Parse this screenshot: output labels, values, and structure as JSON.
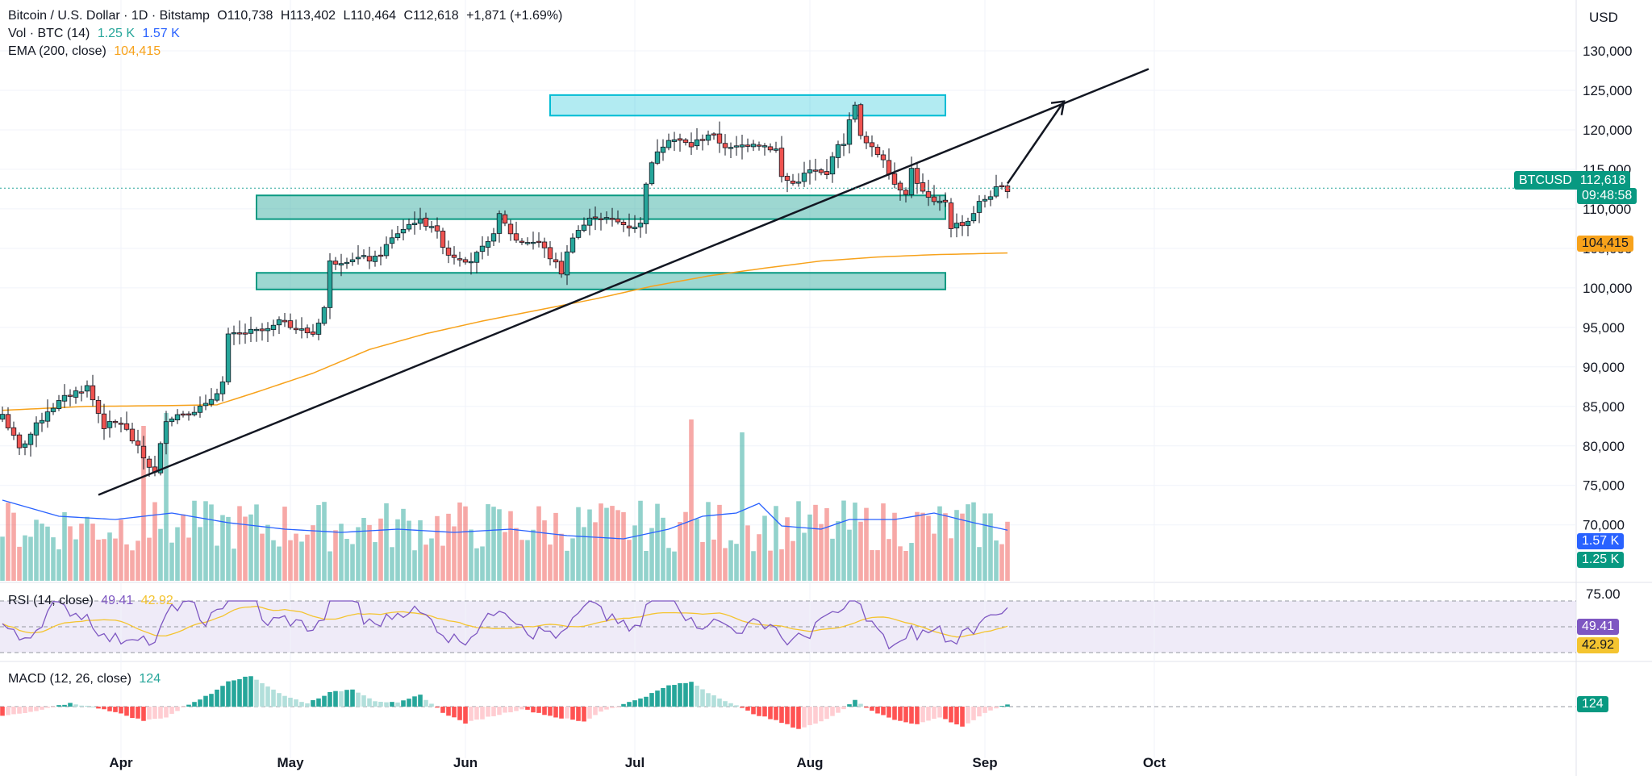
{
  "header": {
    "symbol_title": "Bitcoin / U.S. Dollar · 1D · Bitstamp",
    "open": "O110,738",
    "high": "H113,402",
    "low": "L110,464",
    "close": "C112,618",
    "change": "+1,871 (+1.69%)",
    "vol_label": "Vol · BTC (14)",
    "vol_value1": "1.25 K",
    "vol_value2": "1.57 K",
    "ema_label": "EMA (200, close)",
    "ema_value": "104,415",
    "rsi_label": "RSI (14, close)",
    "rsi_value1": "49.41",
    "rsi_value2": "42.92",
    "macd_label": "MACD (12, 26, close)",
    "macd_value": "124"
  },
  "badges": {
    "price_symbol": "BTCUSD",
    "price_value": "112,618",
    "countdown": "09:48:58",
    "ema": "104,415",
    "vol_ma": "1.57 K",
    "vol": "1.25 K",
    "rsi": "49.41",
    "rsi_ma": "42.92",
    "macd": "124",
    "rsi_top": "75.00",
    "currency": "USD"
  },
  "colors": {
    "up": "#26a69a",
    "down": "#ef5350",
    "ema": "#f7a21b",
    "zone": "#26a69a",
    "top_zone": "#00bcd4",
    "rsi": "#7e57c2",
    "rsi_ma": "#f4c430",
    "vol_ma": "#2962ff"
  },
  "chart_data": {
    "type": "candlestick",
    "price_axis": {
      "min": 70000,
      "max": 130000,
      "ticks": [
        "130,000",
        "125,000",
        "120,000",
        "115,000",
        "110,000",
        "105,000",
        "100,000",
        "95,000",
        "90,000",
        "85,000",
        "80,000",
        "75,000",
        "70,000"
      ]
    },
    "x_ticks": [
      "Apr",
      "May",
      "Jun",
      "Jul",
      "Aug",
      "Sep",
      "Oct"
    ],
    "x_tick_days": [
      21,
      51,
      82,
      112,
      143,
      174,
      204
    ],
    "last_day": 178,
    "price_anchors": [
      [
        0,
        84000
      ],
      [
        3,
        79500
      ],
      [
        8,
        84500
      ],
      [
        12,
        86500
      ],
      [
        15,
        87500
      ],
      [
        18,
        82500
      ],
      [
        21,
        83000
      ],
      [
        25,
        78500
      ],
      [
        27,
        76500
      ],
      [
        29,
        83500
      ],
      [
        32,
        84200
      ],
      [
        36,
        85000
      ],
      [
        39,
        88000
      ],
      [
        40,
        93800
      ],
      [
        43,
        94300
      ],
      [
        47,
        94600
      ],
      [
        50,
        96000
      ],
      [
        52,
        94800
      ],
      [
        55,
        94200
      ],
      [
        57,
        97500
      ],
      [
        58,
        103200
      ],
      [
        62,
        103800
      ],
      [
        66,
        103600
      ],
      [
        70,
        107000
      ],
      [
        73,
        108500
      ],
      [
        76,
        108000
      ],
      [
        79,
        104300
      ],
      [
        83,
        103500
      ],
      [
        86,
        105500
      ],
      [
        88,
        109000
      ],
      [
        91,
        106000
      ],
      [
        95,
        105800
      ],
      [
        99,
        102000
      ],
      [
        101,
        106700
      ],
      [
        105,
        109200
      ],
      [
        108,
        108500
      ],
      [
        111,
        107800
      ],
      [
        113,
        108000
      ],
      [
        114,
        113500
      ],
      [
        116,
        117500
      ],
      [
        118,
        119000
      ],
      [
        122,
        118000
      ],
      [
        125,
        119500
      ],
      [
        129,
        117500
      ],
      [
        133,
        118500
      ],
      [
        137,
        117500
      ],
      [
        138,
        114000
      ],
      [
        140,
        113200
      ],
      [
        143,
        114800
      ],
      [
        146,
        114200
      ],
      [
        147,
        117000
      ],
      [
        149,
        118500
      ],
      [
        151,
        123500
      ],
      [
        152,
        119000
      ],
      [
        154,
        117500
      ],
      [
        156,
        116500
      ],
      [
        158,
        113200
      ],
      [
        160,
        112200
      ],
      [
        161,
        115000
      ],
      [
        163,
        112000
      ],
      [
        165,
        110500
      ],
      [
        167,
        111000
      ],
      [
        168,
        107800
      ],
      [
        170,
        108200
      ],
      [
        171,
        108500
      ],
      [
        173,
        110700
      ],
      [
        176,
        112400
      ],
      [
        178,
        112618
      ]
    ],
    "ema_anchors": [
      [
        0,
        84500
      ],
      [
        15,
        85000
      ],
      [
        30,
        85100
      ],
      [
        38,
        85200
      ],
      [
        45,
        86800
      ],
      [
        55,
        89200
      ],
      [
        65,
        92200
      ],
      [
        75,
        94200
      ],
      [
        85,
        95800
      ],
      [
        95,
        97200
      ],
      [
        105,
        98600
      ],
      [
        115,
        100200
      ],
      [
        125,
        101500
      ],
      [
        135,
        102500
      ],
      [
        145,
        103400
      ],
      [
        155,
        103900
      ],
      [
        165,
        104200
      ],
      [
        178,
        104415
      ]
    ],
    "volume_spikes": {
      "25": 4.8,
      "29": 5.2,
      "122": 5.0,
      "131": 4.6
    },
    "volume_ma_anchors": [
      [
        0,
        2.5
      ],
      [
        10,
        2.0
      ],
      [
        20,
        1.9
      ],
      [
        30,
        2.1
      ],
      [
        40,
        1.8
      ],
      [
        50,
        1.6
      ],
      [
        60,
        1.5
      ],
      [
        70,
        1.6
      ],
      [
        80,
        1.5
      ],
      [
        90,
        1.6
      ],
      [
        100,
        1.4
      ],
      [
        110,
        1.3
      ],
      [
        118,
        1.6
      ],
      [
        124,
        2.0
      ],
      [
        130,
        2.1
      ],
      [
        134,
        2.4
      ],
      [
        138,
        1.7
      ],
      [
        145,
        1.6
      ],
      [
        150,
        1.9
      ],
      [
        158,
        1.9
      ],
      [
        165,
        2.1
      ],
      [
        172,
        1.8
      ],
      [
        178,
        1.57
      ]
    ],
    "rsi_axis": {
      "upper": 70,
      "mid": 50,
      "lower": 30
    },
    "macd_anchors": [
      [
        0,
        -800
      ],
      [
        5,
        -500
      ],
      [
        12,
        300
      ],
      [
        18,
        -200
      ],
      [
        25,
        -1200
      ],
      [
        29,
        -900
      ],
      [
        33,
        200
      ],
      [
        37,
        1100
      ],
      [
        40,
        2200
      ],
      [
        44,
        2600
      ],
      [
        50,
        900
      ],
      [
        54,
        300
      ],
      [
        58,
        1200
      ],
      [
        62,
        1500
      ],
      [
        66,
        500
      ],
      [
        70,
        300
      ],
      [
        74,
        1000
      ],
      [
        78,
        -500
      ],
      [
        82,
        -1400
      ],
      [
        86,
        -900
      ],
      [
        92,
        -200
      ],
      [
        98,
        -900
      ],
      [
        103,
        -1300
      ],
      [
        106,
        -400
      ],
      [
        110,
        200
      ],
      [
        114,
        900
      ],
      [
        118,
        1800
      ],
      [
        122,
        2100
      ],
      [
        125,
        1200
      ],
      [
        129,
        300
      ],
      [
        133,
        -600
      ],
      [
        137,
        -1200
      ],
      [
        141,
        -1900
      ],
      [
        145,
        -1300
      ],
      [
        149,
        -200
      ],
      [
        151,
        600
      ],
      [
        154,
        -400
      ],
      [
        158,
        -1100
      ],
      [
        162,
        -1500
      ],
      [
        166,
        -900
      ],
      [
        170,
        -1700
      ],
      [
        174,
        -600
      ],
      [
        177,
        100
      ],
      [
        178,
        124
      ]
    ],
    "trendline": {
      "start": [
        17,
        73800
      ],
      "end": [
        203,
        127700
      ]
    },
    "zones": [
      {
        "name": "resistance",
        "from_day": 97,
        "to_day": 167,
        "low": 121800,
        "high": 124400
      },
      {
        "name": "support-upper",
        "from_day": 45,
        "to_day": 167,
        "low": 108700,
        "high": 111700
      },
      {
        "name": "support-lower",
        "from_day": 45,
        "to_day": 167,
        "low": 99800,
        "high": 101900
      }
    ],
    "projection_arrow": {
      "from": [
        178,
        113200
      ],
      "to": [
        188,
        123600
      ]
    }
  }
}
